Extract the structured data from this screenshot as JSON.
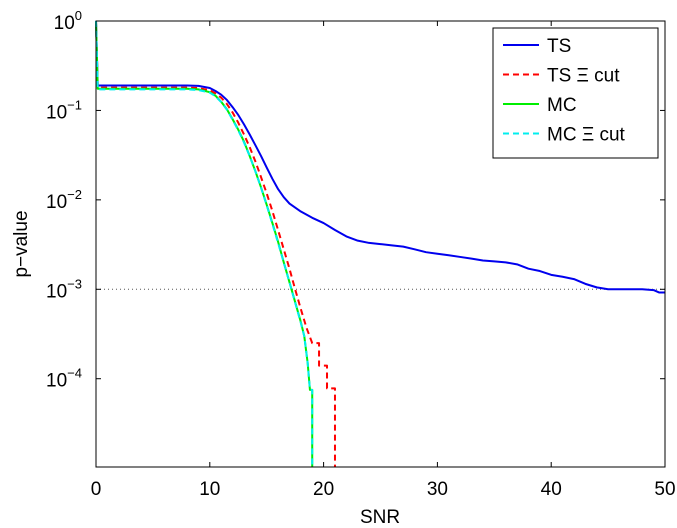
{
  "chart_data": {
    "type": "line",
    "title": "",
    "xlabel": "SNR",
    "ylabel": "p−value",
    "xlim": [
      0,
      50
    ],
    "ylim": [
      1.03e-05,
      1
    ],
    "yscale": "log",
    "grid": false,
    "legend_position": "top-right",
    "x_ticks": [
      {
        "value": 0,
        "label": "0"
      },
      {
        "value": 10,
        "label": "10"
      },
      {
        "value": 20,
        "label": "20"
      },
      {
        "value": 30,
        "label": "30"
      },
      {
        "value": 40,
        "label": "40"
      },
      {
        "value": 50,
        "label": "50"
      }
    ],
    "y_ticks": [
      {
        "value": 1,
        "base": "10",
        "exp": "0"
      },
      {
        "value": 0.1,
        "base": "10",
        "exp": "−1"
      },
      {
        "value": 0.01,
        "base": "10",
        "exp": "−2"
      },
      {
        "value": 0.001,
        "base": "10",
        "exp": "−3"
      },
      {
        "value": 0.0001,
        "base": "10",
        "exp": "−4"
      }
    ],
    "reference_lines": [
      {
        "orientation": "horizontal",
        "y": 0.001,
        "style": "dotted",
        "color": "#555555"
      }
    ],
    "series": [
      {
        "name": "TS",
        "color": "#0000ee",
        "dash": "solid",
        "points": [
          [
            0,
            1
          ],
          [
            0.15,
            0.19
          ],
          [
            2,
            0.19
          ],
          [
            4,
            0.19
          ],
          [
            6,
            0.19
          ],
          [
            8,
            0.19
          ],
          [
            9,
            0.188
          ],
          [
            10,
            0.178
          ],
          [
            10.5,
            0.165
          ],
          [
            11,
            0.15
          ],
          [
            11.5,
            0.131
          ],
          [
            12,
            0.109
          ],
          [
            12.5,
            0.089
          ],
          [
            13,
            0.07
          ],
          [
            13.5,
            0.054
          ],
          [
            14,
            0.041
          ],
          [
            14.5,
            0.031
          ],
          [
            15,
            0.023
          ],
          [
            15.5,
            0.0172
          ],
          [
            16,
            0.0132
          ],
          [
            16.5,
            0.0107
          ],
          [
            17,
            0.0091
          ],
          [
            18,
            0.0074
          ],
          [
            19,
            0.0063
          ],
          [
            20,
            0.0055
          ],
          [
            21,
            0.0046
          ],
          [
            22,
            0.0039
          ],
          [
            23,
            0.0035
          ],
          [
            24,
            0.0033
          ],
          [
            25,
            0.0032
          ],
          [
            26,
            0.0031
          ],
          [
            27,
            0.003
          ],
          [
            28,
            0.0028
          ],
          [
            29,
            0.0026
          ],
          [
            30,
            0.0025
          ],
          [
            31,
            0.0024
          ],
          [
            32,
            0.0023
          ],
          [
            33,
            0.0022
          ],
          [
            34,
            0.0021
          ],
          [
            35,
            0.00205
          ],
          [
            36,
            0.002
          ],
          [
            37,
            0.0019
          ],
          [
            38,
            0.0017
          ],
          [
            39,
            0.0016
          ],
          [
            40,
            0.00145
          ],
          [
            41,
            0.00138
          ],
          [
            42,
            0.0013
          ],
          [
            43,
            0.00115
          ],
          [
            44,
            0.00105
          ],
          [
            45,
            0.001
          ],
          [
            46,
            0.001
          ],
          [
            47,
            0.001
          ],
          [
            48,
            0.001
          ],
          [
            49,
            0.00098
          ],
          [
            49.5,
            0.00092
          ],
          [
            50,
            0.00092
          ]
        ]
      },
      {
        "name": "TS Ξ cut",
        "color": "#ff0000",
        "dash": "dashed",
        "points": [
          [
            0,
            1
          ],
          [
            0.15,
            0.18
          ],
          [
            2,
            0.18
          ],
          [
            4,
            0.18
          ],
          [
            6,
            0.18
          ],
          [
            8,
            0.18
          ],
          [
            9,
            0.178
          ],
          [
            10,
            0.168
          ],
          [
            10.5,
            0.155
          ],
          [
            11,
            0.139
          ],
          [
            11.5,
            0.118
          ],
          [
            12,
            0.095
          ],
          [
            12.5,
            0.073
          ],
          [
            13,
            0.054
          ],
          [
            13.5,
            0.039
          ],
          [
            14,
            0.027
          ],
          [
            14.5,
            0.018
          ],
          [
            15,
            0.0118
          ],
          [
            15.5,
            0.0075
          ],
          [
            16,
            0.0046
          ],
          [
            16.5,
            0.0028
          ],
          [
            17,
            0.0017
          ],
          [
            17.5,
            0.001
          ],
          [
            18,
            0.0006
          ],
          [
            18.5,
            0.00037
          ],
          [
            19,
            0.00025
          ],
          [
            19.6,
            0.00025
          ],
          [
            19.6,
            0.00014
          ],
          [
            20.3,
            0.00014
          ],
          [
            20.3,
            7.8e-05
          ],
          [
            21,
            7.8e-05
          ],
          [
            21,
            1.03e-05
          ]
        ]
      },
      {
        "name": "MC",
        "color": "#00ee00",
        "dash": "solid",
        "points": [
          [
            0,
            1
          ],
          [
            0.15,
            0.175
          ],
          [
            2,
            0.175
          ],
          [
            4,
            0.175
          ],
          [
            6,
            0.175
          ],
          [
            8,
            0.175
          ],
          [
            9,
            0.172
          ],
          [
            10,
            0.16
          ],
          [
            10.5,
            0.146
          ],
          [
            11,
            0.125
          ],
          [
            11.5,
            0.103
          ],
          [
            12,
            0.08
          ],
          [
            12.5,
            0.061
          ],
          [
            13,
            0.045
          ],
          [
            13.5,
            0.031
          ],
          [
            14,
            0.021
          ],
          [
            14.5,
            0.0138
          ],
          [
            15,
            0.0088
          ],
          [
            15.5,
            0.0055
          ],
          [
            16,
            0.0034
          ],
          [
            16.5,
            0.002
          ],
          [
            17,
            0.0012
          ],
          [
            17.5,
            0.00072
          ],
          [
            18,
            0.00043
          ],
          [
            18.3,
            0.0003
          ],
          [
            18.6,
            0.00015
          ],
          [
            18.8,
            7.5e-05
          ],
          [
            19,
            7.5e-05
          ],
          [
            19,
            1.03e-05
          ]
        ]
      },
      {
        "name": "MC Ξ cut",
        "color": "#00eeee",
        "dash": "dashed",
        "points": [
          [
            0,
            1
          ],
          [
            0.15,
            0.172
          ],
          [
            2,
            0.172
          ],
          [
            4,
            0.172
          ],
          [
            6,
            0.172
          ],
          [
            8,
            0.172
          ],
          [
            9,
            0.169
          ],
          [
            10,
            0.158
          ],
          [
            10.5,
            0.144
          ],
          [
            11,
            0.124
          ],
          [
            11.5,
            0.102
          ],
          [
            12,
            0.079
          ],
          [
            12.5,
            0.06
          ],
          [
            13,
            0.044
          ],
          [
            13.5,
            0.031
          ],
          [
            14,
            0.021
          ],
          [
            14.5,
            0.0137
          ],
          [
            15,
            0.0087
          ],
          [
            15.5,
            0.0054
          ],
          [
            16,
            0.0033
          ],
          [
            16.5,
            0.002
          ],
          [
            17,
            0.0012
          ],
          [
            17.5,
            0.00071
          ],
          [
            18,
            0.00042
          ],
          [
            18.3,
            0.0003
          ],
          [
            18.6,
            0.00015
          ],
          [
            18.8,
            7.5e-05
          ],
          [
            19,
            7.5e-05
          ],
          [
            19,
            1.03e-05
          ]
        ]
      }
    ]
  }
}
